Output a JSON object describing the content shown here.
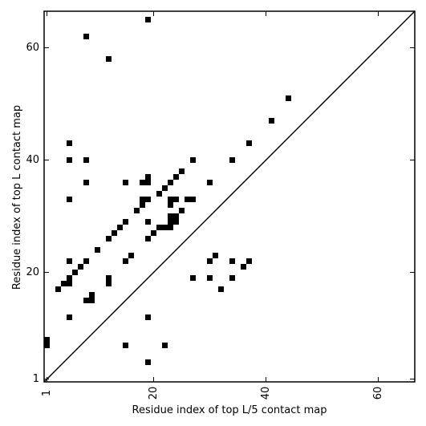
{
  "chart_data": {
    "type": "scatter",
    "title": "",
    "xlabel": "Residue index of top L/5 contact map",
    "ylabel": "Residue index of top L contact map",
    "xlim": [
      0.5,
      66.5
    ],
    "ylim": [
      0.5,
      66.5
    ],
    "xticks": [
      1,
      20,
      40,
      60
    ],
    "yticks": [
      1,
      20,
      40,
      60
    ],
    "xtick_labels": [
      "1",
      "20",
      "40",
      "60"
    ],
    "ytick_labels": [
      "1",
      "20",
      "40",
      "60"
    ],
    "x_tick_label_rotation": -90,
    "grid": false,
    "diagonal_line": true,
    "marker": "square",
    "marker_color": "#000000",
    "points": [
      [
        19,
        65
      ],
      [
        8,
        62
      ],
      [
        12,
        58
      ],
      [
        44,
        51
      ],
      [
        41,
        47
      ],
      [
        5,
        43
      ],
      [
        37,
        43
      ],
      [
        5,
        40
      ],
      [
        8,
        40
      ],
      [
        27,
        40
      ],
      [
        34,
        40
      ],
      [
        25,
        38
      ],
      [
        19,
        37
      ],
      [
        24,
        37
      ],
      [
        8,
        36
      ],
      [
        15,
        36
      ],
      [
        18,
        36
      ],
      [
        19,
        36
      ],
      [
        23,
        36
      ],
      [
        30,
        36
      ],
      [
        22,
        35
      ],
      [
        21,
        34
      ],
      [
        5,
        33
      ],
      [
        18,
        33
      ],
      [
        19,
        33
      ],
      [
        23,
        33
      ],
      [
        24,
        33
      ],
      [
        26,
        33
      ],
      [
        27,
        33
      ],
      [
        18,
        32
      ],
      [
        23,
        32
      ],
      [
        17,
        31
      ],
      [
        25,
        31
      ],
      [
        23,
        30
      ],
      [
        24,
        30
      ],
      [
        15,
        29
      ],
      [
        19,
        29
      ],
      [
        23,
        29
      ],
      [
        24,
        29
      ],
      [
        14,
        28
      ],
      [
        21,
        28
      ],
      [
        22,
        28
      ],
      [
        23,
        28
      ],
      [
        13,
        27
      ],
      [
        20,
        27
      ],
      [
        12,
        26
      ],
      [
        19,
        26
      ],
      [
        10,
        24
      ],
      [
        16,
        23
      ],
      [
        31,
        23
      ],
      [
        5,
        22
      ],
      [
        8,
        22
      ],
      [
        15,
        22
      ],
      [
        30,
        22
      ],
      [
        34,
        22
      ],
      [
        37,
        22
      ],
      [
        7,
        21
      ],
      [
        36,
        21
      ],
      [
        6,
        20
      ],
      [
        5,
        19
      ],
      [
        12,
        19
      ],
      [
        27,
        19
      ],
      [
        30,
        19
      ],
      [
        34,
        19
      ],
      [
        4,
        18
      ],
      [
        5,
        18
      ],
      [
        12,
        18
      ],
      [
        3,
        17
      ],
      [
        32,
        17
      ],
      [
        9,
        16
      ],
      [
        8,
        15
      ],
      [
        9,
        15
      ],
      [
        5,
        12
      ],
      [
        19,
        12
      ],
      [
        1,
        8
      ],
      [
        1,
        7
      ],
      [
        15,
        7
      ],
      [
        22,
        7
      ],
      [
        19,
        4
      ]
    ]
  }
}
